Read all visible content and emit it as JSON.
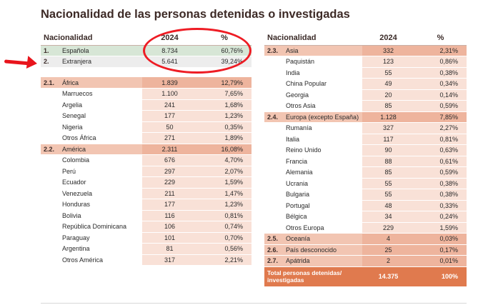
{
  "title": "Nacionalidad de las personas detenidas o investigadas",
  "headers": {
    "nationality": "Nacionalidad",
    "year": "2024",
    "pct": "%"
  },
  "top_rows": [
    {
      "code": "1.",
      "name": "Española",
      "count": "8.734",
      "pct": "60,76%"
    },
    {
      "code": "2.",
      "name": "Extranjera",
      "count": "5.641",
      "pct": "39,24%"
    }
  ],
  "left_rows": [
    {
      "code": "2.1.",
      "name": "África",
      "count": "1.839",
      "pct": "12,79%"
    },
    {
      "code": "",
      "name": "Marruecos",
      "count": "1.100",
      "pct": "7,65%"
    },
    {
      "code": "",
      "name": "Argelia",
      "count": "241",
      "pct": "1,68%"
    },
    {
      "code": "",
      "name": "Senegal",
      "count": "177",
      "pct": "1,23%"
    },
    {
      "code": "",
      "name": "Nigeria",
      "count": "50",
      "pct": "0,35%"
    },
    {
      "code": "",
      "name": "Otros África",
      "count": "271",
      "pct": "1,89%"
    },
    {
      "code": "2.2.",
      "name": "América",
      "count": "2.311",
      "pct": "16,08%"
    },
    {
      "code": "",
      "name": "Colombia",
      "count": "676",
      "pct": "4,70%"
    },
    {
      "code": "",
      "name": "Perú",
      "count": "297",
      "pct": "2,07%"
    },
    {
      "code": "",
      "name": "Ecuador",
      "count": "229",
      "pct": "1,59%"
    },
    {
      "code": "",
      "name": "Venezuela",
      "count": "211",
      "pct": "1,47%"
    },
    {
      "code": "",
      "name": "Honduras",
      "count": "177",
      "pct": "1,23%"
    },
    {
      "code": "",
      "name": "Bolivia",
      "count": "116",
      "pct": "0,81%"
    },
    {
      "code": "",
      "name": "República Dominicana",
      "count": "106",
      "pct": "0,74%"
    },
    {
      "code": "",
      "name": "Paraguay",
      "count": "101",
      "pct": "0,70%"
    },
    {
      "code": "",
      "name": "Argentina",
      "count": "81",
      "pct": "0,56%"
    },
    {
      "code": "",
      "name": "Otros América",
      "count": "317",
      "pct": "2,21%"
    }
  ],
  "right_rows": [
    {
      "code": "2.3.",
      "name": "Asia",
      "count": "332",
      "pct": "2,31%"
    },
    {
      "code": "",
      "name": "Paquistán",
      "count": "123",
      "pct": "0,86%"
    },
    {
      "code": "",
      "name": "India",
      "count": "55",
      "pct": "0,38%"
    },
    {
      "code": "",
      "name": "China Popular",
      "count": "49",
      "pct": "0,34%"
    },
    {
      "code": "",
      "name": "Georgia",
      "count": "20",
      "pct": "0,14%"
    },
    {
      "code": "",
      "name": "Otros Asia",
      "count": "85",
      "pct": "0,59%"
    },
    {
      "code": "2.4.",
      "name": "Europa (excepto España)",
      "count": "1.128",
      "pct": "7,85%"
    },
    {
      "code": "",
      "name": "Rumanía",
      "count": "327",
      "pct": "2,27%"
    },
    {
      "code": "",
      "name": "Italia",
      "count": "117",
      "pct": "0,81%"
    },
    {
      "code": "",
      "name": "Reino Unido",
      "count": "90",
      "pct": "0,63%"
    },
    {
      "code": "",
      "name": "Francia",
      "count": "88",
      "pct": "0,61%"
    },
    {
      "code": "",
      "name": "Alemania",
      "count": "85",
      "pct": "0,59%"
    },
    {
      "code": "",
      "name": "Ucrania",
      "count": "55",
      "pct": "0,38%"
    },
    {
      "code": "",
      "name": "Bulgaria",
      "count": "55",
      "pct": "0,38%"
    },
    {
      "code": "",
      "name": "Portugal",
      "count": "48",
      "pct": "0,33%"
    },
    {
      "code": "",
      "name": "Bélgica",
      "count": "34",
      "pct": "0,24%"
    },
    {
      "code": "",
      "name": "Otros Europa",
      "count": "229",
      "pct": "1,59%"
    },
    {
      "code": "2.5.",
      "name": "Oceanía",
      "count": "4",
      "pct": "0,03%"
    },
    {
      "code": "2.6.",
      "name": "País desconocido",
      "count": "25",
      "pct": "0,17%"
    },
    {
      "code": "2.7.",
      "name": "Apátrida",
      "count": "2",
      "pct": "0,01%"
    }
  ],
  "total": {
    "label": "Total personas detenidas/ investigadas",
    "count": "14.375",
    "pct": "100%"
  },
  "colors": {
    "title": "#3d2a26",
    "group_header": "#f2c5b2",
    "group_header_values": "#eeb49d",
    "sub_values": "#f9e1d7",
    "total": "#e07a4e",
    "spanish_row": "#d7e6d6",
    "foreign_row": "#ededed",
    "annotation_red": "#ee1c24"
  }
}
